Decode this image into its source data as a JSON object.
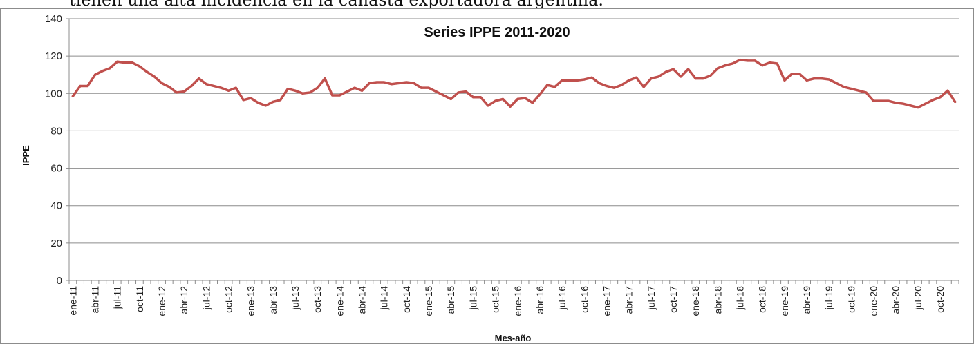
{
  "page": {
    "caption": "tienen una alta incidencia en la canasta exportadora argentina."
  },
  "chart_data": {
    "type": "line",
    "title": "Series IPPE 2011-2020",
    "xlabel": "Mes-año",
    "ylabel": "IPPE",
    "ylim": [
      0,
      140
    ],
    "yticks": [
      0,
      20,
      40,
      60,
      80,
      100,
      120,
      140
    ],
    "grid": true,
    "line_color": "#c0504d",
    "x_tick_labels": [
      "ene-11",
      "abr-11",
      "jul-11",
      "oct-11",
      "ene-12",
      "abr-12",
      "jul-12",
      "oct-12",
      "ene-13",
      "abr-13",
      "jul-13",
      "oct-13",
      "ene-14",
      "abr-14",
      "jul-14",
      "oct-14",
      "ene-15",
      "abr-15",
      "jul-15",
      "oct-15",
      "ene-16",
      "abr-16",
      "jul-16",
      "oct-16",
      "ene-17",
      "abr-17",
      "jul-17",
      "oct-17",
      "ene-18",
      "abr-18",
      "jul-18",
      "oct-18",
      "ene-19",
      "abr-19",
      "jul-19",
      "oct-19",
      "ene-20",
      "abr-20",
      "jul-20",
      "oct-20"
    ],
    "x_start": "ene-11",
    "x_end": "dic-20",
    "series": [
      {
        "values": [
          98.5,
          104,
          104,
          110,
          112,
          113.5,
          117,
          116.5,
          116.5,
          114.5,
          111.5,
          109,
          105.5,
          103.5,
          100.5,
          101,
          104,
          108,
          105,
          104,
          103,
          101.5,
          103,
          96.5,
          97.5,
          95,
          93.5,
          95.5,
          96.5,
          102.5,
          101.5,
          100,
          100.5,
          103,
          108,
          99,
          99,
          101,
          103,
          101.5,
          105.5,
          106,
          106,
          105,
          105.5,
          106,
          105.5,
          103,
          103,
          101,
          99,
          97,
          100.5,
          101,
          98,
          98,
          93.5,
          96,
          97,
          93,
          97,
          97.5,
          95,
          99.5,
          104.5,
          103.5,
          107,
          107,
          107,
          107.5,
          108.5,
          105.5,
          104,
          103,
          104.5,
          107,
          108.5,
          103.5,
          108,
          109,
          111.5,
          113,
          109,
          113,
          108,
          108,
          109.5,
          113.5,
          115,
          116,
          118,
          117.5,
          117.5,
          115,
          116.5,
          116,
          107,
          110.5,
          110.5,
          107,
          108,
          108,
          107.5,
          105.5,
          103.5,
          102.5,
          101.5,
          100.5,
          96,
          96,
          96,
          95,
          94.5,
          93.5,
          92.5,
          94.5,
          96.5,
          98,
          101.5,
          95.5
        ]
      }
    ]
  }
}
